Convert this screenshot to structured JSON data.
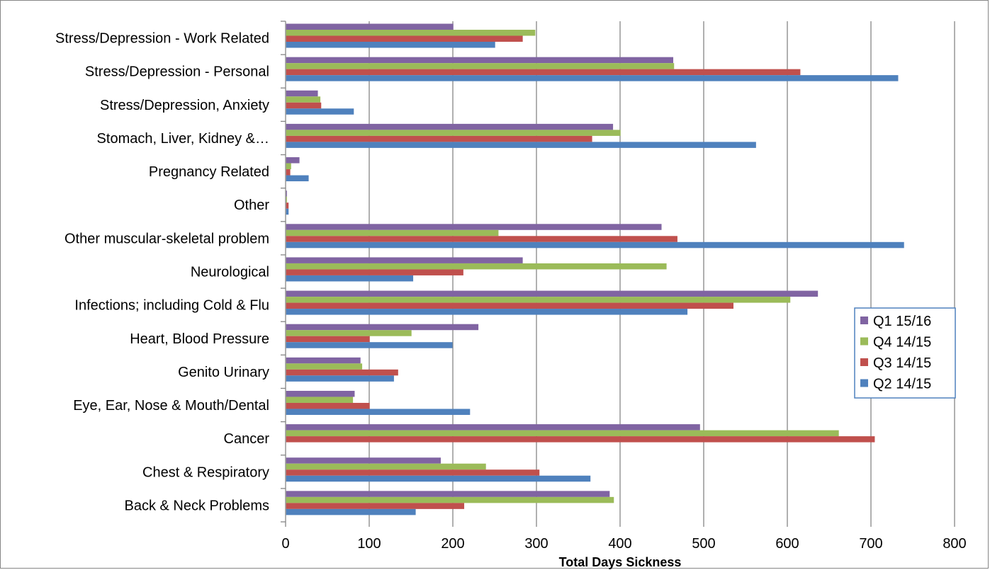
{
  "chart_data": {
    "type": "bar",
    "orientation": "horizontal",
    "categories": [
      "Stress/Depression - Work Related",
      "Stress/Depression - Personal",
      "Stress/Depression, Anxiety",
      "Stomach, Liver, Kidney &…",
      "Pregnancy Related",
      "Other",
      "Other muscular-skeletal problem",
      "Neurological",
      "Infections; including Cold & Flu",
      "Heart, Blood Pressure",
      "Genito Urinary",
      "Eye, Ear, Nose & Mouth/Dental",
      "Cancer",
      "Chest & Respiratory",
      "Back & Neck Problems"
    ],
    "series": [
      {
        "name": "Q1 15/16",
        "color": "#8064A2",
        "values": [
          200,
          463,
          38,
          391,
          16,
          1,
          449,
          283,
          636,
          230,
          89,
          82,
          495,
          185,
          387
        ]
      },
      {
        "name": "Q4 14/15",
        "color": "#9BBB59",
        "values": [
          298,
          464,
          41,
          400,
          6,
          1,
          254,
          455,
          603,
          150,
          91,
          80,
          661,
          239,
          392
        ]
      },
      {
        "name": "Q3 14/15",
        "color": "#C0504D",
        "values": [
          283,
          615,
          42,
          366,
          5,
          3,
          468,
          212,
          535,
          100,
          134,
          100,
          704,
          303,
          213
        ]
      },
      {
        "name": "Q2 14/15",
        "color": "#4F81BD",
        "values": [
          250,
          732,
          81,
          562,
          27,
          3,
          739,
          152,
          480,
          199,
          129,
          220,
          0,
          364,
          155
        ]
      }
    ],
    "xlabel": "Total Days Sickness",
    "xlim": [
      0,
      800
    ],
    "xticks": [
      0,
      100,
      200,
      300,
      400,
      500,
      600,
      700,
      800
    ],
    "grid": "vertical",
    "legend_position": "right"
  }
}
